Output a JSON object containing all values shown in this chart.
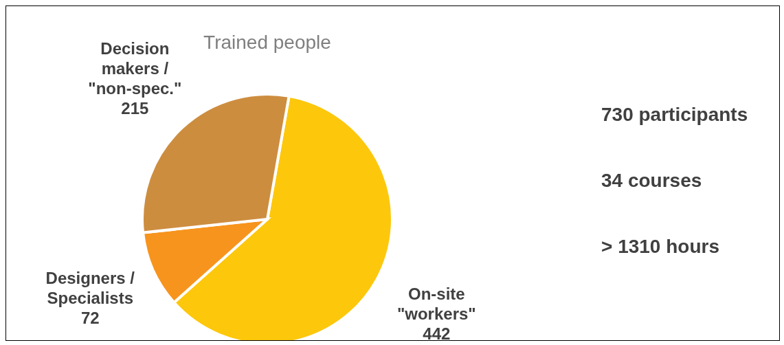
{
  "chart_data": {
    "type": "pie",
    "title": "Trained people",
    "categories": [
      "On-site \"workers\"",
      "Designers / Specialists",
      "Decision makers / \"non-spec.\""
    ],
    "values": [
      442,
      72,
      215
    ],
    "colors": [
      "#fdc70c",
      "#f7941d",
      "#cd8d3f"
    ],
    "data_labels": true,
    "annotations": [
      "730 participants",
      "34 courses",
      "> 1310 hours"
    ]
  }
}
